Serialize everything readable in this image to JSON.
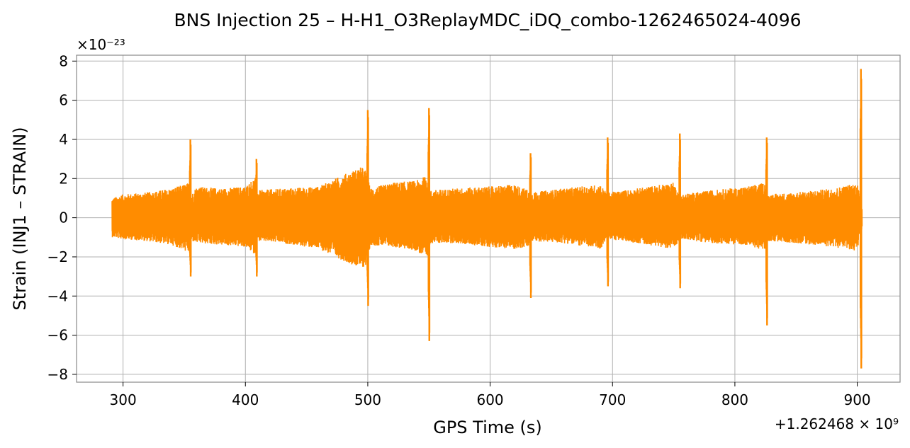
{
  "chart_data": {
    "type": "line",
    "title": "BNS Injection 25 – H-H1_O3ReplayMDC_iDQ_combo-1262465024-4096",
    "xlabel": "GPS Time (s)",
    "ylabel": "Strain (INJ1 – STRAIN)",
    "x_offset_label": "+1.262468 × 10⁹",
    "y_scale_label": "×10⁻²³",
    "xlim": [
      262,
      935
    ],
    "ylim": [
      -8.4,
      8.3
    ],
    "x_ticks": [
      300,
      400,
      500,
      600,
      700,
      800,
      900
    ],
    "x_tick_labels": [
      "300",
      "400",
      "500",
      "600",
      "700",
      "800",
      "900"
    ],
    "y_ticks": [
      -8,
      -6,
      -4,
      -2,
      0,
      2,
      4,
      6,
      8
    ],
    "y_tick_labels": [
      "−8",
      "−6",
      "−4",
      "−2",
      "0",
      "2",
      "4",
      "6",
      "8"
    ],
    "grid": true,
    "color": "#ff8c00",
    "series": [
      {
        "values_envelope": {
          "x": [
            291,
            300,
            320,
            340,
            354,
            356,
            360,
            380,
            400,
            408,
            410,
            430,
            460,
            480,
            495,
            499,
            502,
            520,
            540,
            549,
            551,
            570,
            600,
            620,
            632,
            634,
            660,
            690,
            695,
            697,
            720,
            750,
            754,
            756,
            780,
            810,
            825,
            827,
            850,
            880,
            900,
            902,
            904
          ],
          "upper": [
            1.0,
            1.2,
            1.3,
            1.5,
            1.8,
            1.2,
            1.6,
            1.5,
            1.6,
            2.1,
            1.4,
            1.5,
            1.6,
            2.2,
            2.6,
            2.4,
            1.5,
            1.8,
            1.9,
            2.2,
            1.4,
            1.5,
            1.6,
            1.7,
            1.4,
            1.3,
            1.5,
            1.7,
            1.3,
            1.3,
            1.5,
            1.8,
            1.3,
            1.2,
            1.4,
            1.6,
            1.8,
            1.2,
            1.3,
            1.5,
            1.8,
            1.1,
            0.6
          ],
          "lower": [
            -1.0,
            -1.1,
            -1.2,
            -1.4,
            -1.8,
            -1.2,
            -1.3,
            -1.4,
            -1.5,
            -1.9,
            -1.2,
            -1.3,
            -1.6,
            -2.2,
            -2.6,
            -2.4,
            -1.4,
            -1.5,
            -1.7,
            -2.2,
            -1.3,
            -1.3,
            -1.5,
            -1.6,
            -1.5,
            -1.2,
            -1.3,
            -1.6,
            -1.2,
            -1.1,
            -1.3,
            -1.6,
            -1.2,
            -1.1,
            -1.3,
            -1.4,
            -1.7,
            -1.2,
            -1.3,
            -1.5,
            -1.7,
            -1.0,
            -0.6
          ]
        },
        "spikes": [
          {
            "x": 355,
            "max": 4.0,
            "min": -3.0
          },
          {
            "x": 409,
            "max": 3.0,
            "min": -3.0
          },
          {
            "x": 500,
            "max": 5.5,
            "min": -4.5
          },
          {
            "x": 550,
            "max": 5.6,
            "min": -6.3
          },
          {
            "x": 633,
            "max": 3.3,
            "min": -4.1
          },
          {
            "x": 696,
            "max": 4.1,
            "min": -3.5
          },
          {
            "x": 755,
            "max": 4.3,
            "min": -3.6
          },
          {
            "x": 826,
            "max": 4.1,
            "min": -5.5
          },
          {
            "x": 903,
            "max": 7.6,
            "min": -7.7
          }
        ]
      }
    ]
  }
}
